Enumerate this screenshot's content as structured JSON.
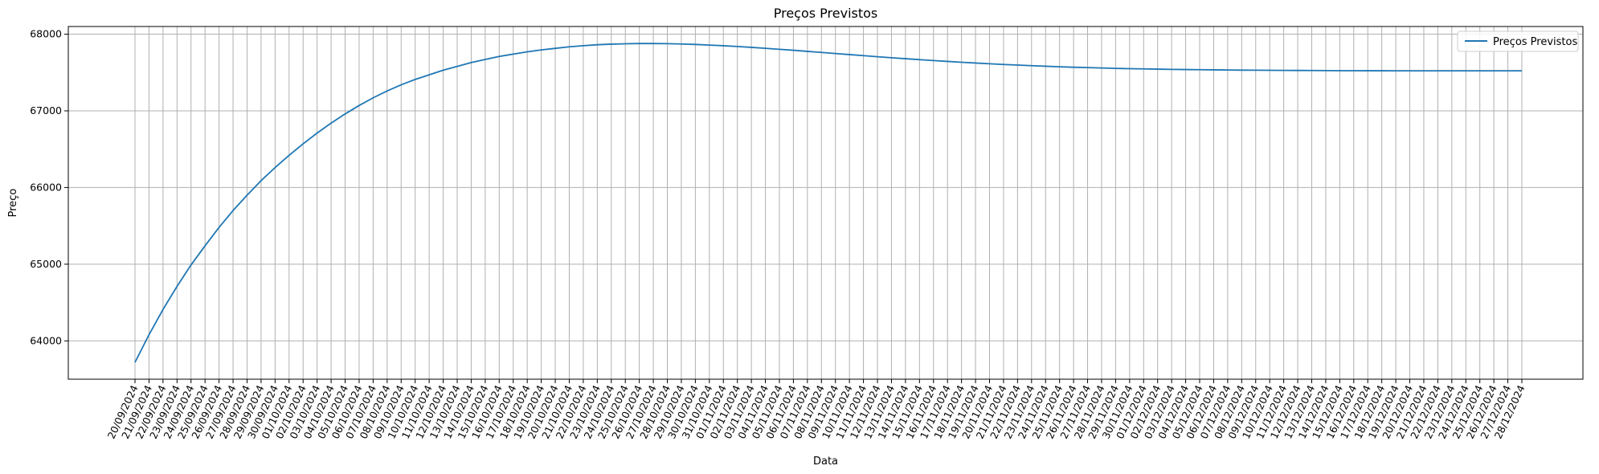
{
  "chart_data": {
    "type": "line",
    "title": "Preços Previstos",
    "xlabel": "Data",
    "ylabel": "Preço",
    "ylim": [
      63500,
      68100
    ],
    "yticks": [
      64000,
      65000,
      66000,
      67000,
      68000
    ],
    "grid": true,
    "legend_position": "top-right",
    "line_color": "#1f77b4",
    "categories": [
      "20/09/2024",
      "21/09/2024",
      "22/09/2024",
      "23/09/2024",
      "24/09/2024",
      "25/09/2024",
      "26/09/2024",
      "27/09/2024",
      "28/09/2024",
      "29/09/2024",
      "30/09/2024",
      "01/10/2024",
      "02/10/2024",
      "03/10/2024",
      "04/10/2024",
      "05/10/2024",
      "06/10/2024",
      "07/10/2024",
      "08/10/2024",
      "09/10/2024",
      "10/10/2024",
      "11/10/2024",
      "12/10/2024",
      "13/10/2024",
      "14/10/2024",
      "15/10/2024",
      "16/10/2024",
      "17/10/2024",
      "18/10/2024",
      "19/10/2024",
      "20/10/2024",
      "21/10/2024",
      "22/10/2024",
      "23/10/2024",
      "24/10/2024",
      "25/10/2024",
      "26/10/2024",
      "27/10/2024",
      "28/10/2024",
      "29/10/2024",
      "30/10/2024",
      "31/10/2024",
      "01/11/2024",
      "02/11/2024",
      "03/11/2024",
      "04/11/2024",
      "05/11/2024",
      "06/11/2024",
      "07/11/2024",
      "08/11/2024",
      "09/11/2024",
      "10/11/2024",
      "11/11/2024",
      "12/11/2024",
      "13/11/2024",
      "14/11/2024",
      "15/11/2024",
      "16/11/2024",
      "17/11/2024",
      "18/11/2024",
      "19/11/2024",
      "20/11/2024",
      "21/11/2024",
      "22/11/2024",
      "23/11/2024",
      "24/11/2024",
      "25/11/2024",
      "26/11/2024",
      "27/11/2024",
      "28/11/2024",
      "29/11/2024",
      "30/11/2024",
      "01/12/2024",
      "02/12/2024",
      "03/12/2024",
      "04/12/2024",
      "05/12/2024",
      "06/12/2024",
      "07/12/2024",
      "08/12/2024",
      "09/12/2024",
      "10/12/2024",
      "11/12/2024",
      "12/12/2024",
      "13/12/2024",
      "14/12/2024",
      "15/12/2024",
      "16/12/2024",
      "17/12/2024",
      "18/12/2024",
      "19/12/2024",
      "20/12/2024",
      "21/12/2024",
      "22/12/2024",
      "23/12/2024",
      "24/12/2024",
      "25/12/2024",
      "26/12/2024",
      "27/12/2024",
      "28/12/2024"
    ],
    "series": [
      {
        "name": "Preços Previstos",
        "values": [
          63720,
          64080,
          64410,
          64710,
          64990,
          65240,
          65480,
          65700,
          65900,
          66090,
          66260,
          66420,
          66570,
          66710,
          66840,
          66960,
          67070,
          67170,
          67260,
          67340,
          67410,
          67470,
          67530,
          67580,
          67630,
          67670,
          67710,
          67740,
          67770,
          67795,
          67815,
          67835,
          67850,
          67862,
          67870,
          67875,
          67878,
          67878,
          67876,
          67872,
          67866,
          67858,
          67849,
          67839,
          67828,
          67816,
          67803,
          67790,
          67776,
          67762,
          67748,
          67734,
          67720,
          67706,
          67693,
          67680,
          67668,
          67656,
          67645,
          67634,
          67624,
          67614,
          67605,
          67597,
          67589,
          67582,
          67575,
          67569,
          67564,
          67559,
          67554,
          67550,
          67547,
          67544,
          67541,
          67539,
          67537,
          67535,
          67533,
          67531,
          67530,
          67529,
          67528,
          67527,
          67526,
          67525,
          67524,
          67524,
          67523,
          67523,
          67522,
          67522,
          67522,
          67522,
          67522,
          67522,
          67522,
          67522,
          67522,
          67522
        ]
      }
    ]
  }
}
